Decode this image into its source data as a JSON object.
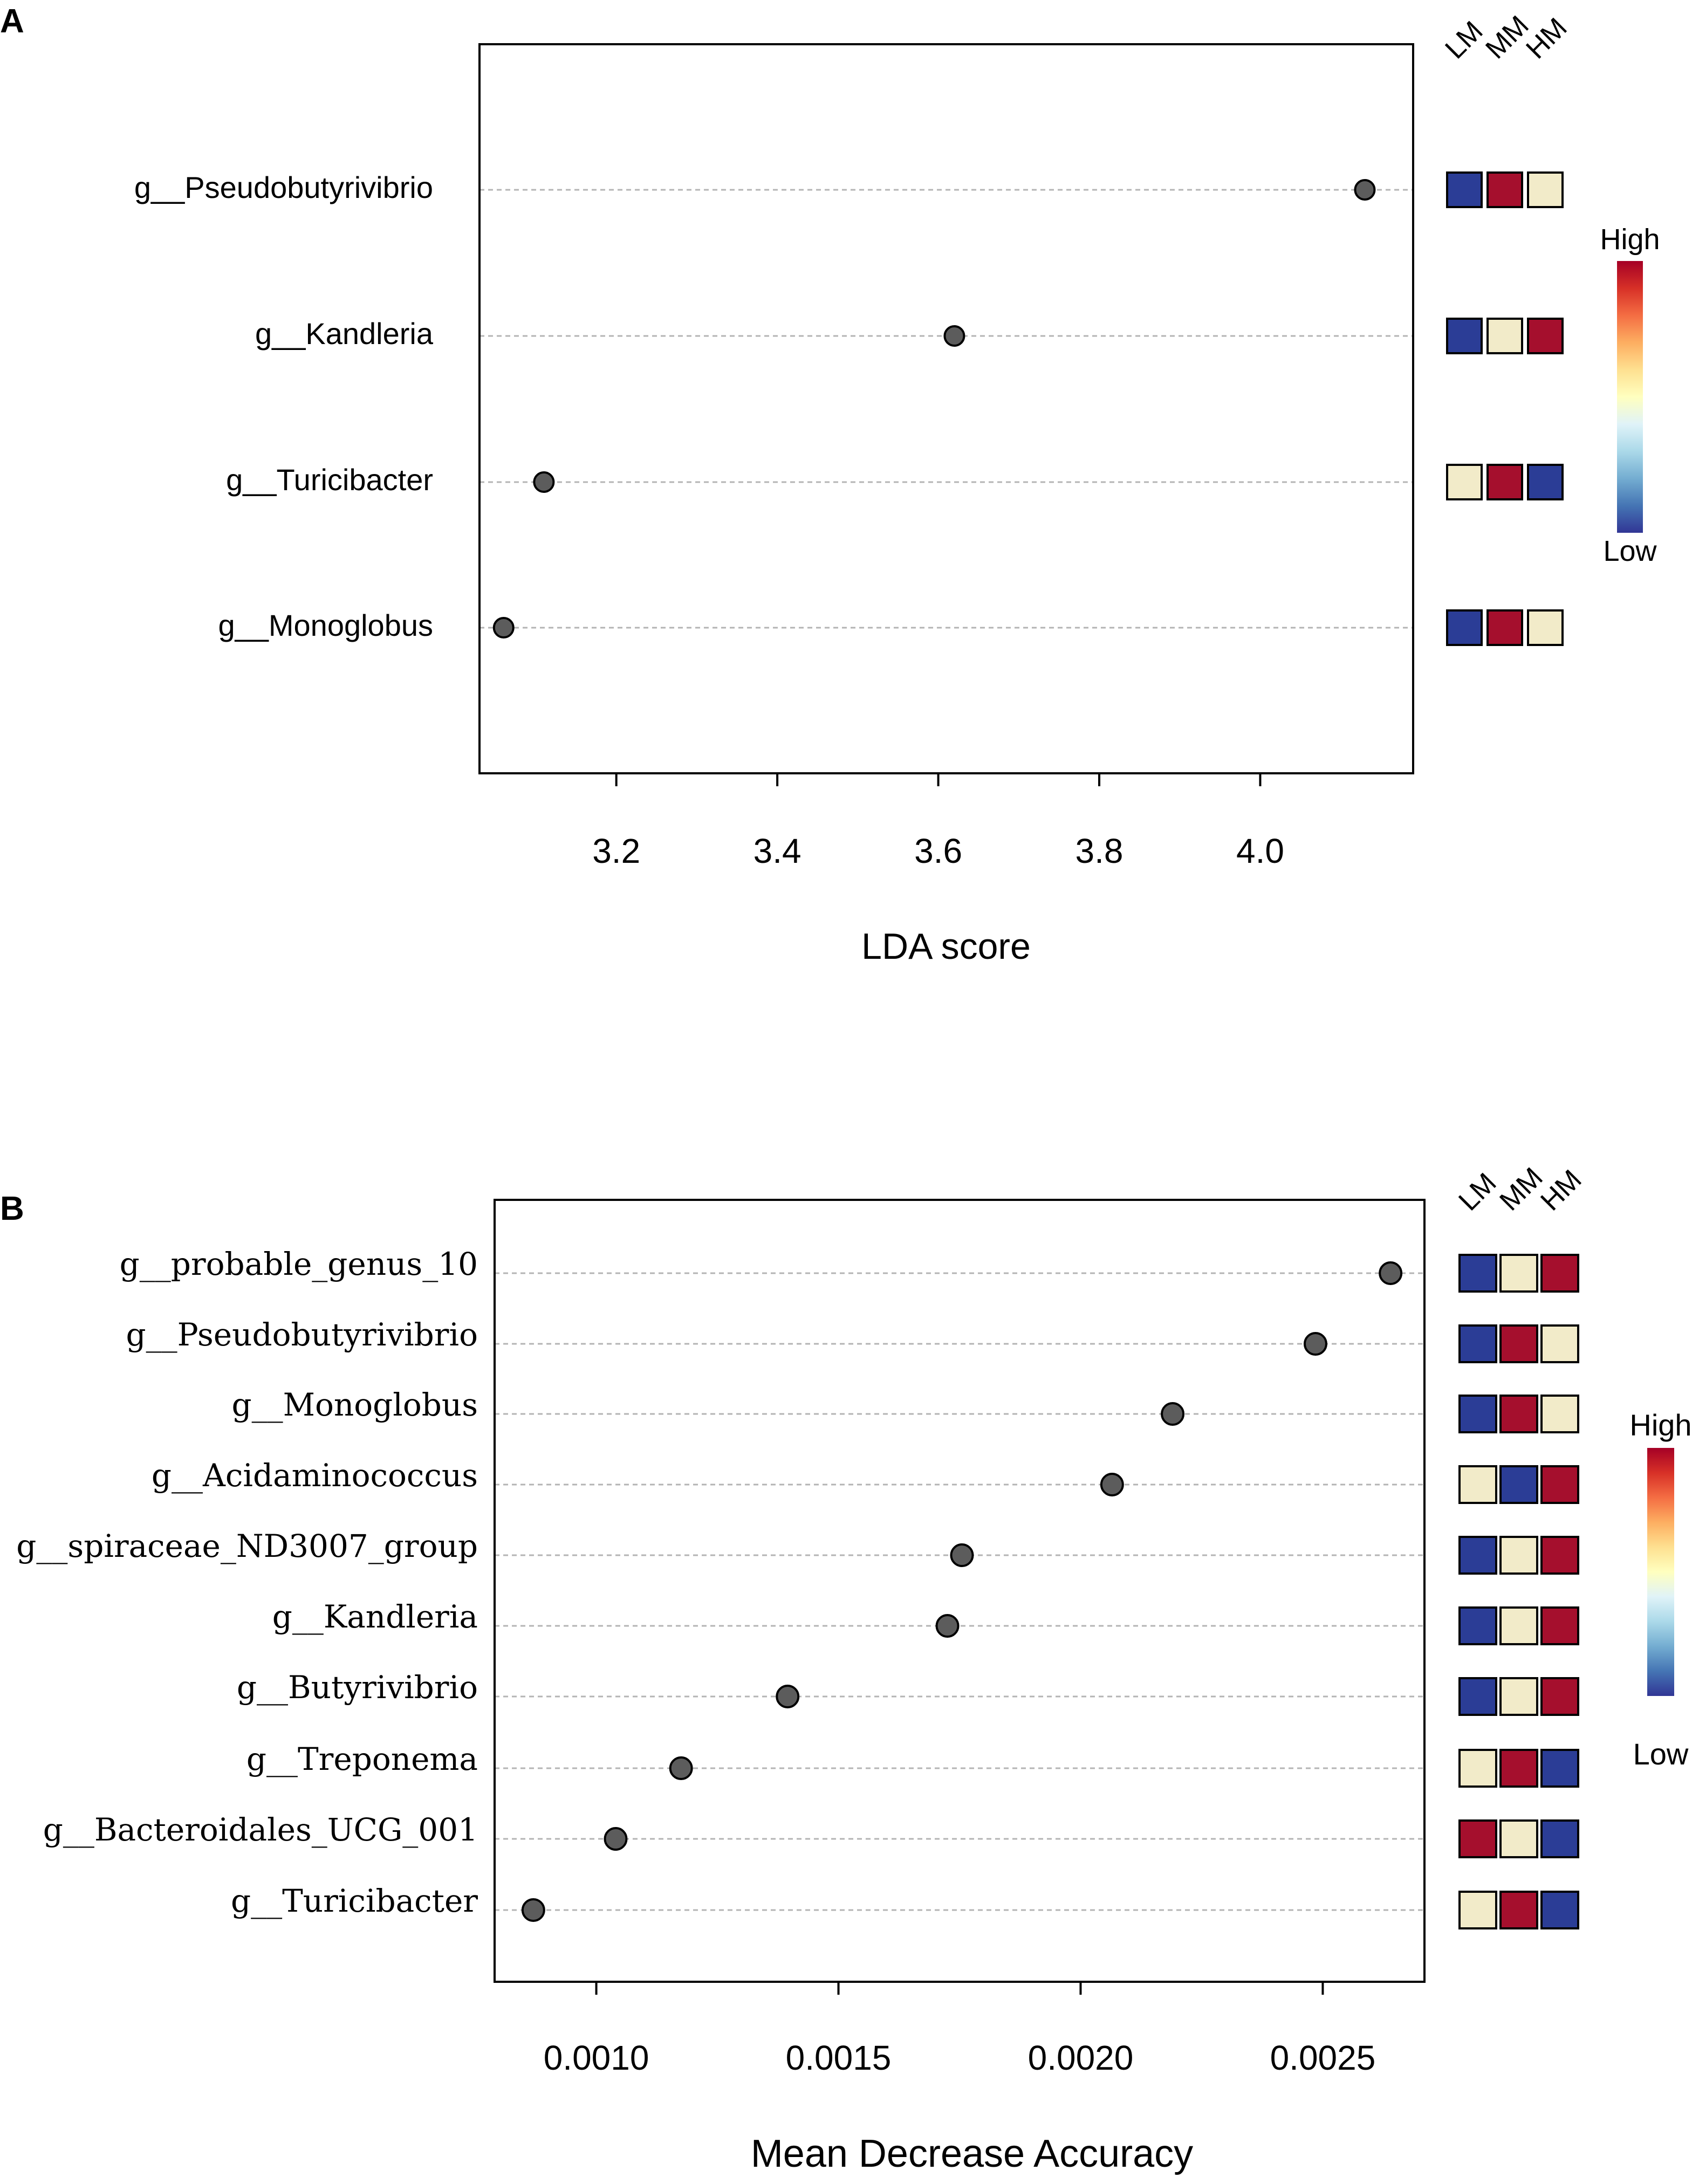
{
  "colors": {
    "low": "#2b3d96",
    "mid": "#f2ebc9",
    "high": "#a50f2d",
    "point": "#5c5c5c",
    "grid": "#b4b4b4",
    "gradient": [
      "#a50026",
      "#d73027",
      "#f46d43",
      "#fdae61",
      "#fee090",
      "#ffffbf",
      "#e0f3f8",
      "#abd9e9",
      "#74add1",
      "#4575b4",
      "#313695"
    ]
  },
  "chart_data": [
    {
      "panel_label": "A",
      "type": "scatter",
      "title": "",
      "xlabel": "LDA score",
      "ylabel": "",
      "xlim": [
        3.03,
        4.19
      ],
      "xticks": [
        3.2,
        3.4,
        3.6,
        3.8,
        4.0
      ],
      "xtick_labels": [
        "3.2",
        "3.4",
        "3.6",
        "3.8",
        "4.0"
      ],
      "grid": "horizontal dashed guides",
      "groups": [
        "LM",
        "MM",
        "HM"
      ],
      "legend": {
        "high_label": "High",
        "low_label": "Low",
        "position": "right"
      },
      "rows": [
        {
          "taxon": "g__Pseudobutyrivibrio",
          "value": 4.13,
          "levels": [
            "low",
            "high",
            "mid"
          ]
        },
        {
          "taxon": "g__Kandleria",
          "value": 3.62,
          "levels": [
            "low",
            "mid",
            "high"
          ]
        },
        {
          "taxon": "g__Turicibacter",
          "value": 3.11,
          "levels": [
            "mid",
            "high",
            "low"
          ]
        },
        {
          "taxon": "g__Monoglobus",
          "value": 3.06,
          "levels": [
            "low",
            "high",
            "mid"
          ]
        }
      ]
    },
    {
      "panel_label": "B",
      "type": "scatter",
      "title": "",
      "xlabel": "Mean Decrease Accuracy",
      "ylabel": "",
      "xlim": [
        0.00079,
        0.00271
      ],
      "xticks": [
        0.001,
        0.0015,
        0.002,
        0.0025
      ],
      "xtick_labels": [
        "0.0010",
        "0.0015",
        "0.0020",
        "0.0025"
      ],
      "grid": "horizontal dashed guides",
      "groups": [
        "LM",
        "MM",
        "HM"
      ],
      "legend": {
        "high_label": "High",
        "low_label": "Low",
        "position": "right"
      },
      "rows": [
        {
          "taxon": "g__probable_genus_10",
          "value": 0.00264,
          "levels": [
            "low",
            "mid",
            "high"
          ]
        },
        {
          "taxon": "g__Pseudobutyrivibrio",
          "value": 0.002485,
          "levels": [
            "low",
            "high",
            "mid"
          ]
        },
        {
          "taxon": "g__Monoglobus",
          "value": 0.00219,
          "levels": [
            "low",
            "high",
            "mid"
          ]
        },
        {
          "taxon": "g__Acidaminococcus",
          "value": 0.002065,
          "levels": [
            "mid",
            "low",
            "high"
          ]
        },
        {
          "taxon": "g__spiraceae_ND3007_group",
          "value": 0.001755,
          "levels": [
            "low",
            "mid",
            "high"
          ]
        },
        {
          "taxon": "g__Kandleria",
          "value": 0.001725,
          "levels": [
            "low",
            "mid",
            "high"
          ]
        },
        {
          "taxon": "g__Butyrivibrio",
          "value": 0.001395,
          "levels": [
            "low",
            "mid",
            "high"
          ]
        },
        {
          "taxon": "g__Treponema",
          "value": 0.001175,
          "levels": [
            "mid",
            "high",
            "low"
          ]
        },
        {
          "taxon": "g__Bacteroidales_UCG_001",
          "value": 0.00104,
          "levels": [
            "high",
            "mid",
            "low"
          ]
        },
        {
          "taxon": "g__Turicibacter",
          "value": 0.00087,
          "levels": [
            "mid",
            "high",
            "low"
          ]
        }
      ]
    }
  ]
}
